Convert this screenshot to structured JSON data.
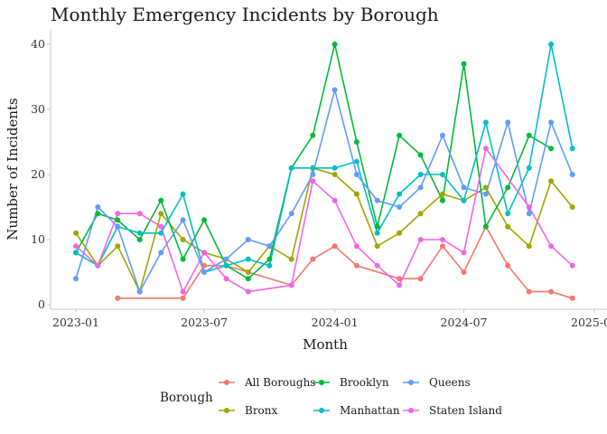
{
  "chart_data": {
    "type": "line",
    "title": "Monthly Emergency Incidents by Borough",
    "xlabel": "Month",
    "ylabel": "Number of Incidents",
    "x_ticks": [
      "2023-01",
      "2023-07",
      "2024-01",
      "2024-07",
      "2025-01"
    ],
    "y_ticks": [
      0,
      10,
      20,
      30,
      40
    ],
    "xlim": [
      "2022-12-23",
      "2025-01-01"
    ],
    "ylim": [
      -0.5,
      41.5
    ],
    "grid": false,
    "legend": {
      "title": "Borough",
      "position": "bottom",
      "order": [
        "All Boroughs",
        "Bronx",
        "Brooklyn",
        "Manhattan",
        "Queens",
        "Staten Island"
      ]
    },
    "series": [
      {
        "name": "All Boroughs",
        "color": "#F8766D",
        "points": [
          [
            "2023-03",
            1
          ],
          [
            "2023-06",
            1
          ],
          [
            "2023-07",
            6
          ],
          [
            "2023-08",
            6
          ],
          [
            "2023-09",
            5
          ],
          [
            "2023-11",
            3
          ],
          [
            "2023-12",
            7
          ],
          [
            "2024-01",
            9
          ],
          [
            "2024-02",
            6
          ],
          [
            "2024-04",
            4
          ],
          [
            "2024-05",
            4
          ],
          [
            "2024-06",
            9
          ],
          [
            "2024-07",
            5
          ],
          [
            "2024-08",
            12
          ],
          [
            "2024-09",
            6
          ],
          [
            "2024-10",
            2
          ],
          [
            "2024-11",
            2
          ],
          [
            "2024-12",
            1
          ]
        ]
      },
      {
        "name": "Bronx",
        "color": "#A3A500",
        "points": [
          [
            "2023-01",
            11
          ],
          [
            "2023-02",
            6
          ],
          [
            "2023-03",
            9
          ],
          [
            "2023-04",
            2
          ],
          [
            "2023-05",
            14
          ],
          [
            "2023-06",
            10
          ],
          [
            "2023-07",
            8
          ],
          [
            "2023-08",
            7
          ],
          [
            "2023-09",
            5
          ],
          [
            "2023-10",
            9
          ],
          [
            "2023-11",
            7
          ],
          [
            "2023-12",
            21
          ],
          [
            "2024-01",
            20
          ],
          [
            "2024-02",
            17
          ],
          [
            "2024-03",
            9
          ],
          [
            "2024-04",
            11
          ],
          [
            "2024-05",
            14
          ],
          [
            "2024-06",
            17
          ],
          [
            "2024-07",
            16
          ],
          [
            "2024-08",
            18
          ],
          [
            "2024-09",
            12
          ],
          [
            "2024-10",
            9
          ],
          [
            "2024-11",
            19
          ],
          [
            "2024-12",
            15
          ]
        ]
      },
      {
        "name": "Brooklyn",
        "color": "#00BA38",
        "points": [
          [
            "2023-01",
            8
          ],
          [
            "2023-02",
            14
          ],
          [
            "2023-03",
            13
          ],
          [
            "2023-04",
            10
          ],
          [
            "2023-05",
            16
          ],
          [
            "2023-06",
            7
          ],
          [
            "2023-07",
            13
          ],
          [
            "2023-08",
            6
          ],
          [
            "2023-09",
            4
          ],
          [
            "2023-10",
            7
          ],
          [
            "2023-11",
            21
          ],
          [
            "2023-12",
            26
          ],
          [
            "2024-01",
            40
          ],
          [
            "2024-02",
            25
          ],
          [
            "2024-03",
            12
          ],
          [
            "2024-04",
            26
          ],
          [
            "2024-05",
            23
          ],
          [
            "2024-06",
            16
          ],
          [
            "2024-07",
            37
          ],
          [
            "2024-08",
            12
          ],
          [
            "2024-09",
            18
          ],
          [
            "2024-10",
            26
          ],
          [
            "2024-11",
            24
          ]
        ]
      },
      {
        "name": "Manhattan",
        "color": "#00BFC4",
        "points": [
          [
            "2023-01",
            8
          ],
          [
            "2023-02",
            6
          ],
          [
            "2023-03",
            12
          ],
          [
            "2023-04",
            11
          ],
          [
            "2023-05",
            11
          ],
          [
            "2023-06",
            17
          ],
          [
            "2023-07",
            5
          ],
          [
            "2023-08",
            6
          ],
          [
            "2023-09",
            7
          ],
          [
            "2023-10",
            6
          ],
          [
            "2023-11",
            21
          ],
          [
            "2023-12",
            21
          ],
          [
            "2024-01",
            21
          ],
          [
            "2024-02",
            22
          ],
          [
            "2024-03",
            11
          ],
          [
            "2024-04",
            17
          ],
          [
            "2024-05",
            20
          ],
          [
            "2024-06",
            20
          ],
          [
            "2024-07",
            16
          ],
          [
            "2024-08",
            28
          ],
          [
            "2024-09",
            14
          ],
          [
            "2024-10",
            21
          ],
          [
            "2024-11",
            40
          ],
          [
            "2024-12",
            24
          ]
        ]
      },
      {
        "name": "Queens",
        "color": "#619CFF",
        "points": [
          [
            "2023-01",
            4
          ],
          [
            "2023-02",
            15
          ],
          [
            "2023-03",
            12
          ],
          [
            "2023-04",
            2
          ],
          [
            "2023-05",
            8
          ],
          [
            "2023-06",
            13
          ],
          [
            "2023-07",
            5
          ],
          [
            "2023-08",
            7
          ],
          [
            "2023-09",
            10
          ],
          [
            "2023-10",
            9
          ],
          [
            "2023-11",
            14
          ],
          [
            "2023-12",
            20
          ],
          [
            "2024-01",
            33
          ],
          [
            "2024-02",
            20
          ],
          [
            "2024-03",
            16
          ],
          [
            "2024-04",
            15
          ],
          [
            "2024-05",
            18
          ],
          [
            "2024-06",
            26
          ],
          [
            "2024-07",
            18
          ],
          [
            "2024-08",
            17
          ],
          [
            "2024-09",
            28
          ],
          [
            "2024-10",
            14
          ],
          [
            "2024-11",
            28
          ],
          [
            "2024-12",
            20
          ]
        ]
      },
      {
        "name": "Staten Island",
        "color": "#F564E3",
        "points": [
          [
            "2023-01",
            9
          ],
          [
            "2023-02",
            6
          ],
          [
            "2023-03",
            14
          ],
          [
            "2023-04",
            14
          ],
          [
            "2023-05",
            12
          ],
          [
            "2023-06",
            2
          ],
          [
            "2023-07",
            8
          ],
          [
            "2023-08",
            4
          ],
          [
            "2023-09",
            2
          ],
          [
            "2023-11",
            3
          ],
          [
            "2023-12",
            19
          ],
          [
            "2024-01",
            16
          ],
          [
            "2024-02",
            9
          ],
          [
            "2024-03",
            6
          ],
          [
            "2024-04",
            3
          ],
          [
            "2024-05",
            10
          ],
          [
            "2024-06",
            10
          ],
          [
            "2024-07",
            8
          ],
          [
            "2024-08",
            24
          ],
          [
            "2024-10",
            15
          ],
          [
            "2024-11",
            9
          ],
          [
            "2024-12",
            6
          ]
        ]
      }
    ]
  }
}
